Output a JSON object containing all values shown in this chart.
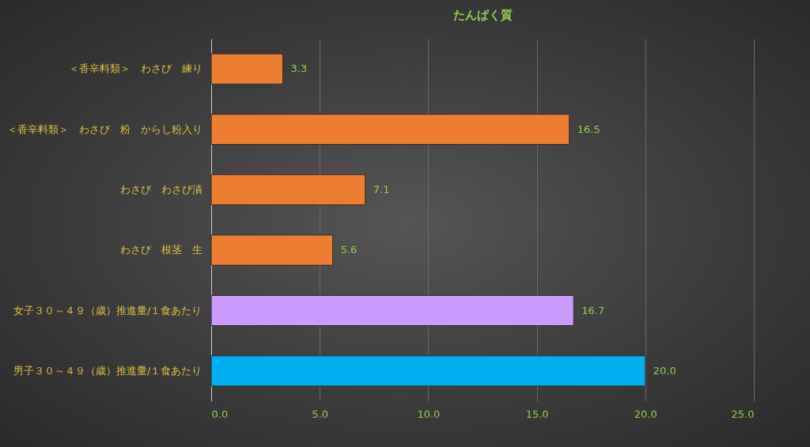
{
  "chart_data": {
    "type": "bar",
    "orientation": "horizontal",
    "title": "たんぱく質",
    "categories": [
      "＜香辛料類＞　わさび　練り",
      "＜香辛料類＞　わさび　粉　からし粉入り",
      "わさび　わさび漬",
      "わさび　根茎　生",
      "女子３０～４９（歳）推進量/１食あたり",
      "男子３０～４９（歳）推進量/１食あたり"
    ],
    "values": [
      3.3,
      16.5,
      7.1,
      5.6,
      16.7,
      20.0
    ],
    "value_labels": [
      "3.3",
      "16.5",
      "7.1",
      "5.6",
      "16.7",
      "20.0"
    ],
    "colors": [
      "#ed7d31",
      "#ed7d31",
      "#ed7d31",
      "#ed7d31",
      "#cc99ff",
      "#00b0f0"
    ],
    "xlim": [
      0,
      25
    ],
    "xticks": [
      {
        "value": 0,
        "label": "0.0"
      },
      {
        "value": 5,
        "label": "5.0"
      },
      {
        "value": 10,
        "label": "10.0"
      },
      {
        "value": 15,
        "label": "15.0"
      },
      {
        "value": 20,
        "label": "20.0"
      },
      {
        "value": 25,
        "label": "25.0"
      }
    ],
    "grid": "x"
  }
}
